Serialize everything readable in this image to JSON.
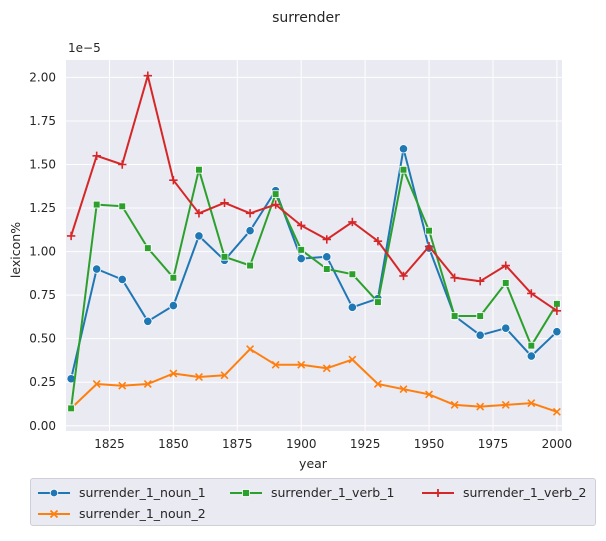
{
  "chart_data": {
    "type": "line",
    "title": "surrender",
    "xlabel": "year",
    "ylabel": "lexicon%",
    "y_multiplier_label": "1e−5",
    "xlim": [
      1808,
      2002
    ],
    "ylim": [
      -0.03,
      2.1
    ],
    "y_scale_exponent": -5,
    "grid": true,
    "legend_placement": "bottom",
    "x_ticks": [
      1825,
      1850,
      1875,
      1900,
      1925,
      1950,
      1975,
      2000
    ],
    "x_tick_labels": [
      "1825",
      "1850",
      "1875",
      "1900",
      "1925",
      "1950",
      "1975",
      "2000"
    ],
    "y_ticks": [
      0,
      0.25,
      0.5,
      0.75,
      1.0,
      1.25,
      1.5,
      1.75,
      2.0
    ],
    "y_tick_labels": [
      "0.00",
      "0.25",
      "0.50",
      "0.75",
      "1.00",
      "1.25",
      "1.50",
      "1.75",
      "2.00"
    ],
    "x": [
      1810,
      1820,
      1830,
      1840,
      1850,
      1860,
      1870,
      1880,
      1890,
      1900,
      1910,
      1920,
      1930,
      1940,
      1950,
      1960,
      1970,
      1980,
      1990,
      2000
    ],
    "series": [
      {
        "name": "surrender_1_noun_1",
        "color": "#1f77b4",
        "marker": "circle",
        "values": [
          0.27,
          0.9,
          0.84,
          0.6,
          0.69,
          1.09,
          0.95,
          1.12,
          1.35,
          0.96,
          0.97,
          0.68,
          0.73,
          1.59,
          1.02,
          0.63,
          0.52,
          0.56,
          0.4,
          0.54
        ]
      },
      {
        "name": "surrender_1_noun_2",
        "color": "#ff7f0e",
        "marker": "x",
        "values": [
          0.1,
          0.24,
          0.23,
          0.24,
          0.3,
          0.28,
          0.29,
          0.44,
          0.35,
          0.35,
          0.33,
          0.38,
          0.24,
          0.21,
          0.18,
          0.12,
          0.11,
          0.12,
          0.13,
          0.08
        ]
      },
      {
        "name": "surrender_1_verb_1",
        "color": "#2ca02c",
        "marker": "square",
        "values": [
          0.1,
          1.27,
          1.26,
          1.02,
          0.85,
          1.47,
          0.97,
          0.92,
          1.33,
          1.01,
          0.9,
          0.87,
          0.71,
          1.47,
          1.12,
          0.63,
          0.63,
          0.82,
          0.46,
          0.7
        ]
      },
      {
        "name": "surrender_1_verb_2",
        "color": "#d62728",
        "marker": "plus",
        "values": [
          1.09,
          1.55,
          1.5,
          2.01,
          1.41,
          1.22,
          1.28,
          1.22,
          1.27,
          1.15,
          1.07,
          1.17,
          1.06,
          0.86,
          1.03,
          0.85,
          0.83,
          0.92,
          0.76,
          0.66
        ]
      }
    ]
  }
}
